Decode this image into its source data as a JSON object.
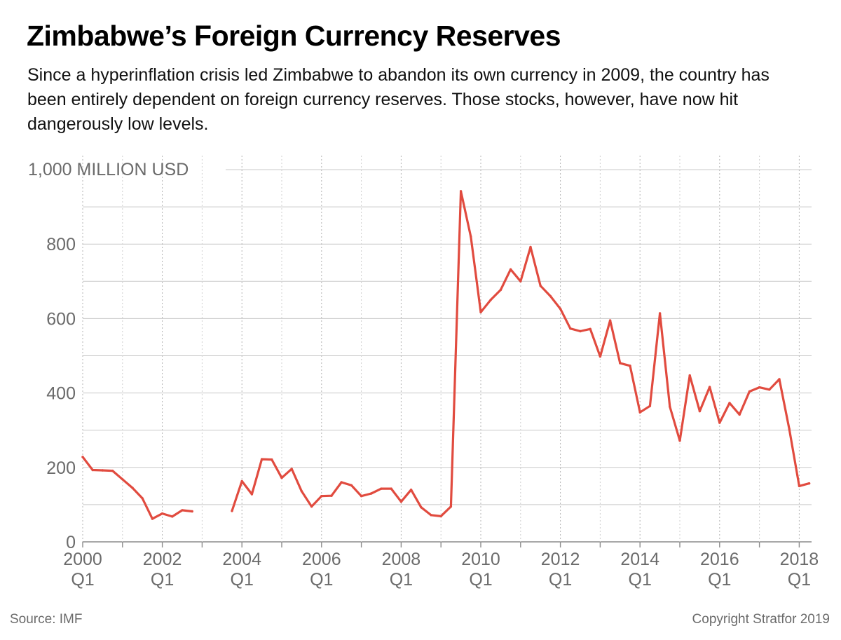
{
  "chart_data": {
    "type": "line",
    "title": "Zimbabwe’s Foreign Currency Reserves",
    "subtitle": "Since a hyperinflation crisis led Zimbabwe to abandon its own currency in 2009, the country has been entirely dependent on foreign currency reserves. Those stocks, however, have now hit dangerously low levels.",
    "ylabel": "1,000 MILLION USD",
    "ylim": [
      0,
      1000
    ],
    "yticks": [
      {
        "value": 0,
        "label": "0"
      },
      {
        "value": 200,
        "label": "200"
      },
      {
        "value": 400,
        "label": "400"
      },
      {
        "value": 600,
        "label": "600"
      },
      {
        "value": 800,
        "label": "800"
      },
      {
        "value": 1000,
        "label": "1,000 MILLION USD"
      }
    ],
    "xlim": [
      "2000 Q1",
      "2018 Q2"
    ],
    "xticks": [
      {
        "period": "2000 Q1",
        "year": "2000",
        "quarter": "Q1"
      },
      {
        "period": "2002 Q1",
        "year": "2002",
        "quarter": "Q1"
      },
      {
        "period": "2004 Q1",
        "year": "2004",
        "quarter": "Q1"
      },
      {
        "period": "2006 Q1",
        "year": "2006",
        "quarter": "Q1"
      },
      {
        "period": "2008 Q1",
        "year": "2008",
        "quarter": "Q1"
      },
      {
        "period": "2010 Q1",
        "year": "2010",
        "quarter": "Q1"
      },
      {
        "period": "2012 Q1",
        "year": "2012",
        "quarter": "Q1"
      },
      {
        "period": "2014 Q1",
        "year": "2014",
        "quarter": "Q1"
      },
      {
        "period": "2016 Q1",
        "year": "2016",
        "quarter": "Q1"
      },
      {
        "period": "2018 Q1",
        "year": "2018",
        "quarter": "Q1"
      }
    ],
    "grid": true,
    "line_color": "#e14b3f",
    "series": [
      {
        "points": [
          {
            "period": "2000 Q1",
            "value": 228
          },
          {
            "period": "2000 Q2",
            "value": 193
          },
          {
            "period": "2000 Q3",
            "value": 192
          },
          {
            "period": "2000 Q4",
            "value": 191
          },
          {
            "period": "2001 Q1",
            "value": 168
          },
          {
            "period": "2001 Q2",
            "value": 145
          },
          {
            "period": "2001 Q3",
            "value": 117
          },
          {
            "period": "2001 Q4",
            "value": 62
          },
          {
            "period": "2002 Q1",
            "value": 76
          },
          {
            "period": "2002 Q2",
            "value": 68
          },
          {
            "period": "2002 Q3",
            "value": 85
          },
          {
            "period": "2002 Q4",
            "value": 82
          },
          {
            "period": "2003 Q1",
            "value": null
          },
          {
            "period": "2003 Q2",
            "value": null
          },
          {
            "period": "2003 Q3",
            "value": null
          },
          {
            "period": "2003 Q4",
            "value": 83
          },
          {
            "period": "2004 Q1",
            "value": 163
          },
          {
            "period": "2004 Q2",
            "value": 128
          },
          {
            "period": "2004 Q3",
            "value": 222
          },
          {
            "period": "2004 Q4",
            "value": 221
          },
          {
            "period": "2005 Q1",
            "value": 172
          },
          {
            "period": "2005 Q2",
            "value": 196
          },
          {
            "period": "2005 Q3",
            "value": 136
          },
          {
            "period": "2005 Q4",
            "value": 95
          },
          {
            "period": "2006 Q1",
            "value": 123
          },
          {
            "period": "2006 Q2",
            "value": 124
          },
          {
            "period": "2006 Q3",
            "value": 160
          },
          {
            "period": "2006 Q4",
            "value": 152
          },
          {
            "period": "2007 Q1",
            "value": 123
          },
          {
            "period": "2007 Q2",
            "value": 130
          },
          {
            "period": "2007 Q3",
            "value": 143
          },
          {
            "period": "2007 Q4",
            "value": 143
          },
          {
            "period": "2008 Q1",
            "value": 108
          },
          {
            "period": "2008 Q2",
            "value": 140
          },
          {
            "period": "2008 Q3",
            "value": 93
          },
          {
            "period": "2008 Q4",
            "value": 72
          },
          {
            "period": "2009 Q1",
            "value": 69
          },
          {
            "period": "2009 Q2",
            "value": 95
          },
          {
            "period": "2009 Q3",
            "value": 942
          },
          {
            "period": "2009 Q4",
            "value": 820
          },
          {
            "period": "2010 Q1",
            "value": 617
          },
          {
            "period": "2010 Q2",
            "value": 650
          },
          {
            "period": "2010 Q3",
            "value": 677
          },
          {
            "period": "2010 Q4",
            "value": 732
          },
          {
            "period": "2011 Q1",
            "value": 700
          },
          {
            "period": "2011 Q2",
            "value": 792
          },
          {
            "period": "2011 Q3",
            "value": 688
          },
          {
            "period": "2011 Q4",
            "value": 660
          },
          {
            "period": "2012 Q1",
            "value": 626
          },
          {
            "period": "2012 Q2",
            "value": 573
          },
          {
            "period": "2012 Q3",
            "value": 566
          },
          {
            "period": "2012 Q4",
            "value": 572
          },
          {
            "period": "2013 Q1",
            "value": 498
          },
          {
            "period": "2013 Q2",
            "value": 595
          },
          {
            "period": "2013 Q3",
            "value": 480
          },
          {
            "period": "2013 Q4",
            "value": 473
          },
          {
            "period": "2014 Q1",
            "value": 348
          },
          {
            "period": "2014 Q2",
            "value": 365
          },
          {
            "period": "2014 Q3",
            "value": 614
          },
          {
            "period": "2014 Q4",
            "value": 363
          },
          {
            "period": "2015 Q1",
            "value": 272
          },
          {
            "period": "2015 Q2",
            "value": 447
          },
          {
            "period": "2015 Q3",
            "value": 351
          },
          {
            "period": "2015 Q4",
            "value": 416
          },
          {
            "period": "2016 Q1",
            "value": 320
          },
          {
            "period": "2016 Q2",
            "value": 373
          },
          {
            "period": "2016 Q3",
            "value": 342
          },
          {
            "period": "2016 Q4",
            "value": 404
          },
          {
            "period": "2017 Q1",
            "value": 415
          },
          {
            "period": "2017 Q2",
            "value": 409
          },
          {
            "period": "2017 Q3",
            "value": 437
          },
          {
            "period": "2017 Q4",
            "value": 303
          },
          {
            "period": "2018 Q1",
            "value": 150
          },
          {
            "period": "2018 Q2",
            "value": 157
          }
        ]
      }
    ]
  },
  "footer": {
    "source": "Source: IMF",
    "copyright": "Copyright Stratfor 2019"
  }
}
